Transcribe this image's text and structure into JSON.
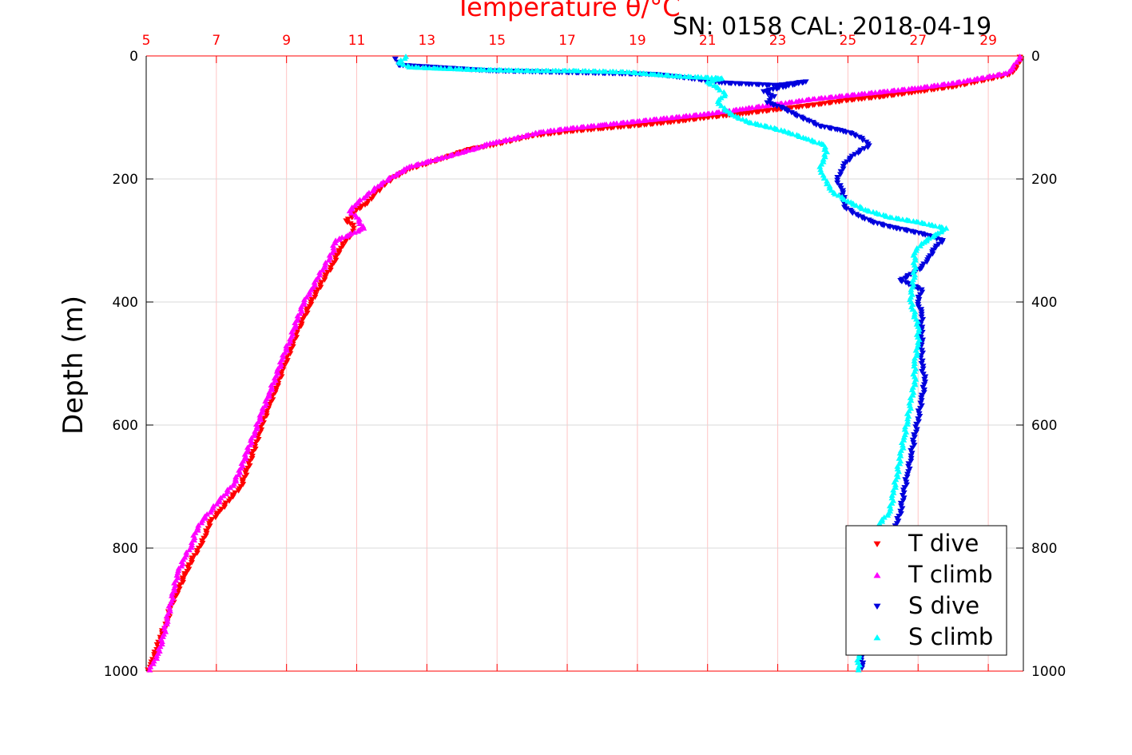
{
  "chart_data": {
    "type": "scatter",
    "title": "Temperature θ/°C",
    "subtitle": "SN: 0158  CAL: 2018-04-19",
    "ylabel": "Depth (m)",
    "x_top_ticks": [
      "5",
      "7",
      "9",
      "11",
      "13",
      "15",
      "17",
      "19",
      "21",
      "23",
      "25",
      "27",
      "29"
    ],
    "xlim": [
      5,
      30
    ],
    "ylim": [
      0,
      1000
    ],
    "y_reversed": true,
    "y_ticks": [
      "0",
      "200",
      "400",
      "600",
      "800",
      "1000"
    ],
    "grid": true,
    "legend_position": "bottom-right",
    "x_units_note": "",
    "series": [
      {
        "name": "T dive",
        "marker": "triangle-down",
        "color": "#ff0000",
        "points": [
          [
            29.9,
            2
          ],
          [
            29.9,
            10
          ],
          [
            29.8,
            20
          ],
          [
            29.6,
            30
          ],
          [
            29.0,
            38
          ],
          [
            28.0,
            50
          ],
          [
            27.0,
            58
          ],
          [
            26.0,
            66
          ],
          [
            25.0,
            72
          ],
          [
            24.0,
            80
          ],
          [
            23.0,
            87
          ],
          [
            22.0,
            94
          ],
          [
            21.0,
            100
          ],
          [
            20.2,
            106
          ],
          [
            19.2,
            112
          ],
          [
            18.0,
            118
          ],
          [
            17.0,
            123
          ],
          [
            16.0,
            130
          ],
          [
            15.4,
            138
          ],
          [
            14.8,
            146
          ],
          [
            14.2,
            152
          ],
          [
            13.8,
            160
          ],
          [
            13.4,
            168
          ],
          [
            13.0,
            175
          ],
          [
            12.6,
            182
          ],
          [
            12.3,
            190
          ],
          [
            12.0,
            200
          ],
          [
            11.8,
            210
          ],
          [
            11.5,
            225
          ],
          [
            11.3,
            240
          ],
          [
            11.0,
            250
          ],
          [
            10.9,
            260
          ],
          [
            10.7,
            268
          ],
          [
            10.9,
            275
          ],
          [
            10.9,
            285
          ],
          [
            10.8,
            295
          ],
          [
            10.6,
            305
          ],
          [
            10.5,
            320
          ],
          [
            10.3,
            340
          ],
          [
            10.1,
            360
          ],
          [
            9.9,
            380
          ],
          [
            9.7,
            400
          ],
          [
            9.5,
            425
          ],
          [
            9.3,
            450
          ],
          [
            9.1,
            480
          ],
          [
            8.9,
            510
          ],
          [
            8.7,
            540
          ],
          [
            8.5,
            570
          ],
          [
            8.3,
            600
          ],
          [
            8.1,
            635
          ],
          [
            7.9,
            670
          ],
          [
            7.7,
            700
          ],
          [
            7.4,
            720
          ],
          [
            7.1,
            740
          ],
          [
            6.8,
            760
          ],
          [
            6.7,
            780
          ],
          [
            6.5,
            800
          ],
          [
            6.3,
            820
          ],
          [
            6.1,
            845
          ],
          [
            5.9,
            870
          ],
          [
            5.7,
            895
          ],
          [
            5.6,
            920
          ],
          [
            5.4,
            945
          ],
          [
            5.3,
            965
          ],
          [
            5.15,
            985
          ],
          [
            5.05,
            998
          ]
        ]
      },
      {
        "name": "T climb",
        "marker": "triangle-up",
        "color": "#ff00ff",
        "points": [
          [
            29.9,
            1
          ],
          [
            29.8,
            10
          ],
          [
            29.7,
            20
          ],
          [
            29.5,
            28
          ],
          [
            28.8,
            36
          ],
          [
            28.0,
            44
          ],
          [
            27.0,
            52
          ],
          [
            26.0,
            58
          ],
          [
            25.0,
            64
          ],
          [
            24.0,
            70
          ],
          [
            23.0,
            78
          ],
          [
            22.0,
            86
          ],
          [
            21.0,
            94
          ],
          [
            20.0,
            100
          ],
          [
            19.0,
            106
          ],
          [
            18.0,
            112
          ],
          [
            17.0,
            118
          ],
          [
            16.2,
            124
          ],
          [
            15.5,
            134
          ],
          [
            14.8,
            142
          ],
          [
            14.4,
            150
          ],
          [
            13.9,
            158
          ],
          [
            13.4,
            166
          ],
          [
            13.0,
            172
          ],
          [
            12.5,
            180
          ],
          [
            12.2,
            190
          ],
          [
            11.9,
            200
          ],
          [
            11.6,
            212
          ],
          [
            11.3,
            225
          ],
          [
            11.0,
            240
          ],
          [
            10.8,
            252
          ],
          [
            11.0,
            262
          ],
          [
            11.2,
            280
          ],
          [
            10.8,
            290
          ],
          [
            10.4,
            300
          ],
          [
            10.3,
            320
          ],
          [
            10.1,
            340
          ],
          [
            9.9,
            360
          ],
          [
            9.7,
            380
          ],
          [
            9.5,
            400
          ],
          [
            9.3,
            430
          ],
          [
            9.1,
            460
          ],
          [
            8.9,
            490
          ],
          [
            8.7,
            520
          ],
          [
            8.5,
            550
          ],
          [
            8.3,
            580
          ],
          [
            8.1,
            610
          ],
          [
            7.9,
            640
          ],
          [
            7.7,
            670
          ],
          [
            7.5,
            695
          ],
          [
            7.2,
            715
          ],
          [
            6.9,
            735
          ],
          [
            6.6,
            755
          ],
          [
            6.4,
            775
          ],
          [
            6.3,
            795
          ],
          [
            6.1,
            815
          ],
          [
            5.9,
            840
          ],
          [
            5.8,
            865
          ],
          [
            5.7,
            890
          ],
          [
            5.6,
            915
          ],
          [
            5.5,
            940
          ],
          [
            5.4,
            960
          ],
          [
            5.3,
            975
          ],
          [
            5.2,
            988
          ],
          [
            5.1,
            998
          ]
        ]
      },
      {
        "name": "S dive",
        "marker": "triangle-down",
        "color": "#0000dd",
        "points": [
          [
            12.1,
            5
          ],
          [
            12.2,
            15
          ],
          [
            14.8,
            24
          ],
          [
            19.5,
            30
          ],
          [
            20.3,
            35
          ],
          [
            21.5,
            44
          ],
          [
            23.0,
            48
          ],
          [
            23.8,
            42
          ],
          [
            22.6,
            58
          ],
          [
            22.9,
            66
          ],
          [
            22.7,
            76
          ],
          [
            23.2,
            86
          ],
          [
            23.5,
            96
          ],
          [
            23.9,
            106
          ],
          [
            24.2,
            114
          ],
          [
            24.7,
            120
          ],
          [
            25.1,
            126
          ],
          [
            25.4,
            134
          ],
          [
            25.6,
            146
          ],
          [
            25.2,
            160
          ],
          [
            24.9,
            175
          ],
          [
            24.8,
            188
          ],
          [
            24.7,
            202
          ],
          [
            24.8,
            215
          ],
          [
            24.9,
            230
          ],
          [
            24.9,
            246
          ],
          [
            25.3,
            260
          ],
          [
            25.7,
            270
          ],
          [
            26.2,
            278
          ],
          [
            26.8,
            285
          ],
          [
            27.3,
            292
          ],
          [
            27.7,
            300
          ],
          [
            27.5,
            312
          ],
          [
            27.3,
            328
          ],
          [
            27.1,
            345
          ],
          [
            26.5,
            365
          ],
          [
            27.1,
            380
          ],
          [
            27.0,
            400
          ],
          [
            27.1,
            420
          ],
          [
            27.1,
            445
          ],
          [
            27.1,
            470
          ],
          [
            27.1,
            500
          ],
          [
            27.2,
            530
          ],
          [
            27.1,
            560
          ],
          [
            27.0,
            590
          ],
          [
            26.9,
            620
          ],
          [
            26.8,
            650
          ],
          [
            26.7,
            680
          ],
          [
            26.6,
            710
          ],
          [
            26.5,
            740
          ],
          [
            26.4,
            760
          ],
          [
            26.2,
            790
          ],
          [
            26.0,
            820
          ],
          [
            25.8,
            850
          ],
          [
            25.6,
            880
          ],
          [
            25.5,
            910
          ],
          [
            25.5,
            940
          ],
          [
            25.4,
            970
          ],
          [
            25.4,
            995
          ]
        ]
      },
      {
        "name": "S climb",
        "marker": "triangle-up",
        "color": "#00ffff",
        "points": [
          [
            12.4,
            1
          ],
          [
            12.2,
            10
          ],
          [
            12.5,
            18
          ],
          [
            13.3,
            20
          ],
          [
            14.3,
            22
          ],
          [
            16.0,
            24
          ],
          [
            17.2,
            24
          ],
          [
            18.7,
            26
          ],
          [
            19.5,
            30
          ],
          [
            20.2,
            33
          ],
          [
            21.4,
            36
          ],
          [
            21.0,
            42
          ],
          [
            21.3,
            52
          ],
          [
            21.5,
            62
          ],
          [
            21.3,
            74
          ],
          [
            21.5,
            88
          ],
          [
            21.8,
            98
          ],
          [
            22.2,
            108
          ],
          [
            22.8,
            116
          ],
          [
            23.3,
            124
          ],
          [
            23.8,
            134
          ],
          [
            24.3,
            144
          ],
          [
            24.4,
            156
          ],
          [
            24.3,
            168
          ],
          [
            24.2,
            180
          ],
          [
            24.3,
            194
          ],
          [
            24.4,
            208
          ],
          [
            24.6,
            222
          ],
          [
            25.0,
            236
          ],
          [
            25.5,
            250
          ],
          [
            26.2,
            262
          ],
          [
            27.0,
            270
          ],
          [
            27.8,
            280
          ],
          [
            27.5,
            290
          ],
          [
            27.1,
            305
          ],
          [
            26.9,
            320
          ],
          [
            26.9,
            340
          ],
          [
            26.9,
            360
          ],
          [
            26.8,
            380
          ],
          [
            26.8,
            400
          ],
          [
            26.9,
            420
          ],
          [
            27.0,
            440
          ],
          [
            27.0,
            470
          ],
          [
            26.9,
            500
          ],
          [
            26.9,
            530
          ],
          [
            26.8,
            560
          ],
          [
            26.7,
            590
          ],
          [
            26.6,
            620
          ],
          [
            26.5,
            650
          ],
          [
            26.4,
            680
          ],
          [
            26.3,
            710
          ],
          [
            26.2,
            740
          ],
          [
            25.9,
            760
          ],
          [
            25.8,
            790
          ],
          [
            25.7,
            820
          ],
          [
            25.6,
            850
          ],
          [
            25.5,
            880
          ],
          [
            25.5,
            910
          ],
          [
            25.4,
            940
          ],
          [
            25.3,
            970
          ],
          [
            25.3,
            998
          ]
        ]
      }
    ]
  }
}
